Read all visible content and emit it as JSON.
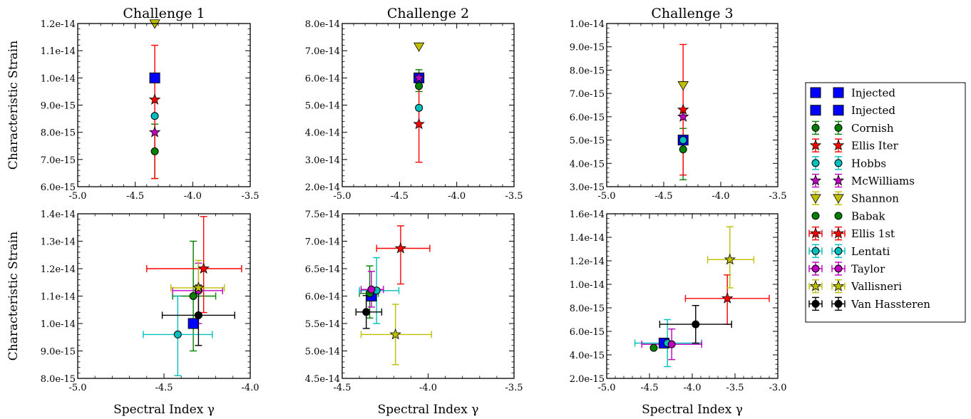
{
  "chart_data": [
    {
      "type": "scatter",
      "title": "Challenge 1",
      "xlabel": "",
      "ylabel": "Characteristic Strain",
      "xlim": [
        -5.0,
        -3.5
      ],
      "ylim": [
        6e-15,
        1.2e-14
      ],
      "xticks": [
        -5.0,
        -4.5,
        -4.0,
        -3.5
      ],
      "xticklabels": [
        "-5.0",
        "-4.5",
        "-4.0",
        "-3.5"
      ],
      "yticks": [
        6e-15,
        7e-15,
        8e-15,
        9e-15,
        1e-14,
        1.1e-14,
        1.2e-14
      ],
      "yticklabels": [
        "6.0e-15",
        "7.0e-15",
        "8.0e-15",
        "9.0e-15",
        "1.0e-14",
        "1.1e-14",
        "1.2e-14"
      ],
      "points": [
        {
          "series": "Injected",
          "x": -4.33,
          "y": 1e-14
        },
        {
          "series": "Cornish",
          "x": -4.33,
          "y": 7.3e-15,
          "ylo": 6.3e-15,
          "yhi": 8.3e-15
        },
        {
          "series": "Ellis Iter",
          "x": -4.33,
          "y": 9.2e-15,
          "ylo": 6.3e-15,
          "yhi": 1.12e-14
        },
        {
          "series": "Hobbs",
          "x": -4.33,
          "y": 8.6e-15
        },
        {
          "series": "McWilliams",
          "x": -4.33,
          "y": 8e-15
        },
        {
          "series": "Shannon",
          "x": -4.33,
          "y": 1.2e-14
        }
      ]
    },
    {
      "type": "scatter",
      "title": "Challenge 2",
      "xlabel": "",
      "ylabel": "",
      "xlim": [
        -5.0,
        -3.5
      ],
      "ylim": [
        2e-14,
        8e-14
      ],
      "xticks": [
        -5.0,
        -4.5,
        -4.0,
        -3.5
      ],
      "xticklabels": [
        "-5.0",
        "-4.5",
        "-4.0",
        "-3.5"
      ],
      "yticks": [
        2e-14,
        3e-14,
        4e-14,
        5e-14,
        6e-14,
        7e-14,
        8e-14
      ],
      "yticklabels": [
        "2.0e-14",
        "3.0e-14",
        "4.0e-14",
        "5.0e-14",
        "6.0e-14",
        "7.0e-14",
        "8.0e-14"
      ],
      "points": [
        {
          "series": "Injected",
          "x": -4.33,
          "y": 6e-14
        },
        {
          "series": "Cornish",
          "x": -4.33,
          "y": 5.7e-14,
          "ylo": 5.5e-14,
          "yhi": 6.3e-14
        },
        {
          "series": "Ellis Iter",
          "x": -4.33,
          "y": 4.3e-14,
          "ylo": 2.9e-14,
          "yhi": 6e-14
        },
        {
          "series": "Hobbs",
          "x": -4.33,
          "y": 4.9e-14
        },
        {
          "series": "McWilliams",
          "x": -4.33,
          "y": 6e-14
        },
        {
          "series": "Shannon",
          "x": -4.33,
          "y": 7.15e-14
        }
      ]
    },
    {
      "type": "scatter",
      "title": "Challenge 3",
      "xlabel": "",
      "ylabel": "",
      "xlim": [
        -5.0,
        -3.5
      ],
      "ylim": [
        3e-15,
        1e-14
      ],
      "xticks": [
        -5.0,
        -4.5,
        -4.0,
        -3.5
      ],
      "xticklabels": [
        "-5.0",
        "-4.5",
        "-4.0",
        "-3.5"
      ],
      "yticks": [
        3e-15,
        4e-15,
        5e-15,
        6e-15,
        7e-15,
        8e-15,
        9e-15,
        1e-14
      ],
      "yticklabels": [
        "3.0e-15",
        "4.0e-15",
        "5.0e-15",
        "6.0e-15",
        "7.0e-15",
        "8.0e-15",
        "9.0e-15",
        "1.0e-14"
      ],
      "points": [
        {
          "series": "Injected",
          "x": -4.33,
          "y": 5e-15
        },
        {
          "series": "Cornish",
          "x": -4.33,
          "y": 4.6e-15,
          "ylo": 3.3e-15,
          "yhi": 5.5e-15
        },
        {
          "series": "Ellis Iter",
          "x": -4.33,
          "y": 6.3e-15,
          "ylo": 3.5e-15,
          "yhi": 9.1e-15
        },
        {
          "series": "Hobbs",
          "x": -4.33,
          "y": 5e-15
        },
        {
          "series": "McWilliams",
          "x": -4.33,
          "y": 6e-15
        },
        {
          "series": "Shannon",
          "x": -4.33,
          "y": 7.35e-15
        }
      ]
    },
    {
      "type": "scatter",
      "title": "",
      "xlabel": "Spectral Index γ",
      "ylabel": "Characteristic Strain",
      "xlim": [
        -5.0,
        -4.0
      ],
      "ylim": [
        8e-15,
        1.4e-14
      ],
      "xticks": [
        -5.0,
        -4.5,
        -4.0
      ],
      "xticklabels": [
        "-5.0",
        "-4.5",
        "-4.0"
      ],
      "yticks": [
        8e-15,
        9e-15,
        1e-14,
        1.1e-14,
        1.2e-14,
        1.3e-14,
        1.4e-14
      ],
      "yticklabels": [
        "8.0e-15",
        "9.0e-15",
        "1.0e-14",
        "1.1e-14",
        "1.2e-14",
        "1.3e-14",
        "1.4e-14"
      ],
      "points": [
        {
          "series": "Injected",
          "x": -4.33,
          "y": 1e-14
        },
        {
          "series": "Babak",
          "x": -4.33,
          "y": 1.1e-14,
          "xlo": -4.45,
          "xhi": -4.2,
          "ylo": 9e-15,
          "yhi": 1.3e-14
        },
        {
          "series": "Ellis 1st",
          "x": -4.27,
          "y": 1.2e-14,
          "xlo": -4.6,
          "xhi": -4.05,
          "ylo": 1.04e-14,
          "yhi": 1.39e-14
        },
        {
          "series": "Lentati",
          "x": -4.42,
          "y": 9.6e-15,
          "xlo": -4.62,
          "xhi": -4.22,
          "ylo": 8.1e-15,
          "yhi": 1.1e-14
        },
        {
          "series": "Taylor",
          "x": -4.3,
          "y": 1.12e-14,
          "xlo": -4.45,
          "xhi": -4.16,
          "ylo": 1e-14,
          "yhi": 1.22e-14
        },
        {
          "series": "Vallisneri",
          "x": -4.3,
          "y": 1.13e-14,
          "xlo": -4.46,
          "xhi": -4.15,
          "ylo": 1.03e-14,
          "yhi": 1.23e-14
        },
        {
          "series": "Van Hassteren",
          "x": -4.3,
          "y": 1.03e-14,
          "xlo": -4.51,
          "xhi": -4.09,
          "ylo": 9.2e-15,
          "yhi": 1.14e-14
        }
      ]
    },
    {
      "type": "scatter",
      "title": "",
      "xlabel": "Spectral Index γ",
      "ylabel": "",
      "xlim": [
        -4.5,
        -3.5
      ],
      "ylim": [
        4.5e-14,
        7.5e-14
      ],
      "xticks": [
        -4.5,
        -4.0,
        -3.5
      ],
      "xticklabels": [
        "-4.5",
        "-4.0",
        "-3.5"
      ],
      "yticks": [
        4.5e-14,
        5e-14,
        5.5e-14,
        6e-14,
        6.5e-14,
        7e-14,
        7.5e-14
      ],
      "yticklabels": [
        "4.5e-14",
        "5.0e-14",
        "5.5e-14",
        "6.0e-14",
        "6.5e-14",
        "7.0e-14",
        "7.5e-14"
      ],
      "points": [
        {
          "series": "Injected",
          "x": -4.33,
          "y": 6e-14
        },
        {
          "series": "Babak",
          "x": -4.34,
          "y": 6.05e-14,
          "xlo": -4.4,
          "xhi": -4.29,
          "ylo": 5.6e-14,
          "yhi": 6.55e-14
        },
        {
          "series": "Ellis 1st",
          "x": -4.16,
          "y": 6.87e-14,
          "xlo": -4.3,
          "xhi": -3.99,
          "ylo": 6.22e-14,
          "yhi": 7.28e-14
        },
        {
          "series": "Lentati",
          "x": -4.3,
          "y": 6.1e-14,
          "xlo": -4.4,
          "xhi": -4.17,
          "ylo": 5.5e-14,
          "yhi": 6.7e-14
        },
        {
          "series": "Taylor",
          "x": -4.33,
          "y": 6.12e-14,
          "xlo": -4.39,
          "xhi": -4.26,
          "ylo": 5.8e-14,
          "yhi": 6.45e-14
        },
        {
          "series": "Vallisneri",
          "x": -4.19,
          "y": 5.3e-14,
          "xlo": -4.39,
          "xhi": -3.98,
          "ylo": 4.75e-14,
          "yhi": 5.85e-14
        },
        {
          "series": "Van Hassteren",
          "x": -4.36,
          "y": 5.71e-14,
          "xlo": -4.42,
          "xhi": -4.27,
          "ylo": 5.41e-14,
          "yhi": 6.01e-14
        }
      ]
    },
    {
      "type": "scatter",
      "title": "",
      "xlabel": "Spectral Index γ",
      "ylabel": "",
      "xlim": [
        -5.0,
        -3.0
      ],
      "ylim": [
        2e-15,
        1.6e-14
      ],
      "xticks": [
        -5.0,
        -4.5,
        -4.0,
        -3.5,
        -3.0
      ],
      "xticklabels": [
        "-5.0",
        "-4.5",
        "-4.0",
        "-3.5",
        "-3.0"
      ],
      "yticks": [
        2e-15,
        4e-15,
        6e-15,
        8e-15,
        1e-14,
        1.2e-14,
        1.4e-14,
        1.6e-14
      ],
      "yticklabels": [
        "2.0e-15",
        "4.0e-15",
        "6.0e-15",
        "8.0e-15",
        "1.0e-14",
        "1.2e-14",
        "1.4e-14",
        "1.6e-14"
      ],
      "points": [
        {
          "series": "Injected",
          "x": -4.33,
          "y": 5e-15
        },
        {
          "series": "Babak",
          "x": -4.45,
          "y": 4.6e-15
        },
        {
          "series": "Ellis 1st",
          "x": -3.59,
          "y": 8.8e-15,
          "xlo": -4.08,
          "xhi": -3.1,
          "ylo": 6.6e-15,
          "yhi": 1.08e-14
        },
        {
          "series": "Lentati",
          "x": -4.29,
          "y": 5e-15,
          "xlo": -4.67,
          "xhi": -3.89,
          "ylo": 3e-15,
          "yhi": 7e-15
        },
        {
          "series": "Taylor",
          "x": -4.24,
          "y": 4.9e-15,
          "xlo": -4.59,
          "xhi": -3.89,
          "ylo": 3.6e-15,
          "yhi": 6.2e-15
        },
        {
          "series": "Vallisneri",
          "x": -3.56,
          "y": 1.21e-14,
          "xlo": -3.82,
          "xhi": -3.28,
          "ylo": 9.7e-15,
          "yhi": 1.49e-14
        },
        {
          "series": "Van Hassteren",
          "x": -3.96,
          "y": 6.6e-15,
          "xlo": -4.38,
          "xhi": -3.54,
          "ylo": 5e-15,
          "yhi": 8.2e-15
        }
      ]
    }
  ],
  "legend": {
    "placement": "right",
    "entries": [
      {
        "label": "Injected",
        "marker": "square",
        "color": "#0000ff",
        "errorbar": "none"
      },
      {
        "label": "Injected",
        "marker": "square",
        "color": "#0000ff",
        "errorbar": "none"
      },
      {
        "label": "Cornish",
        "marker": "circle",
        "color": "#008000",
        "errorbar": "vertical"
      },
      {
        "label": "Ellis Iter",
        "marker": "star",
        "color": "#ff0000",
        "errorbar": "vertical"
      },
      {
        "label": "Hobbs",
        "marker": "circle",
        "color": "#00bfbf",
        "errorbar": "vertical"
      },
      {
        "label": "McWilliams",
        "marker": "star",
        "color": "#bf00bf",
        "errorbar": "vertical"
      },
      {
        "label": "Shannon",
        "marker": "triangle-down",
        "color": "#bfbf00",
        "errorbar": "vertical"
      },
      {
        "label": "Babak",
        "marker": "circle",
        "color": "#008000",
        "errorbar": "none"
      },
      {
        "label": "Ellis 1st",
        "marker": "star",
        "color": "#ff0000",
        "errorbar": "both"
      },
      {
        "label": "Lentati",
        "marker": "circle",
        "color": "#00bfbf",
        "errorbar": "both"
      },
      {
        "label": "Taylor",
        "marker": "circle",
        "color": "#bf00bf",
        "errorbar": "both"
      },
      {
        "label": "Vallisneri",
        "marker": "star",
        "color": "#bfbf00",
        "errorbar": "both"
      },
      {
        "label": "Van Hassteren",
        "marker": "circle",
        "color": "#000000",
        "errorbar": "both"
      }
    ]
  },
  "series_styles": {
    "Injected": {
      "marker": "square",
      "color": "#0000ff"
    },
    "Cornish": {
      "marker": "circle",
      "color": "#008000"
    },
    "Ellis Iter": {
      "marker": "star",
      "color": "#ff0000"
    },
    "Hobbs": {
      "marker": "circle",
      "color": "#00bfbf"
    },
    "McWilliams": {
      "marker": "star",
      "color": "#bf00bf"
    },
    "Shannon": {
      "marker": "triangle-down",
      "color": "#bfbf00"
    },
    "Babak": {
      "marker": "circle",
      "color": "#008000"
    },
    "Ellis 1st": {
      "marker": "star",
      "color": "#ff0000"
    },
    "Lentati": {
      "marker": "circle",
      "color": "#00bfbf"
    },
    "Taylor": {
      "marker": "circle",
      "color": "#bf00bf"
    },
    "Vallisneri": {
      "marker": "star",
      "color": "#bfbf00"
    },
    "Van Hassteren": {
      "marker": "circle",
      "color": "#000000"
    }
  }
}
